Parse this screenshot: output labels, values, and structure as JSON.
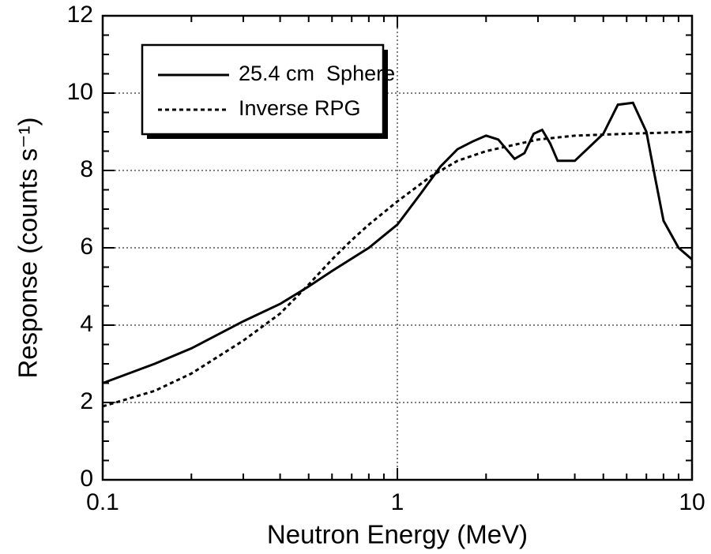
{
  "chart_data": {
    "type": "line",
    "xlabel": "Neutron Energy (MeV)",
    "ylabel": "Response (counts s⁻¹)",
    "xscale": "log",
    "xlim": [
      0.1,
      10
    ],
    "xticks": [
      0.1,
      1,
      10
    ],
    "ylim": [
      0,
      12
    ],
    "yticks": [
      0,
      2,
      4,
      6,
      8,
      10,
      12
    ],
    "grid": true,
    "legend": "upper left",
    "series": [
      {
        "name": "25.4 cm  Sphere",
        "color": "#000000",
        "linestyle": "solid",
        "x": [
          0.1,
          0.15,
          0.2,
          0.3,
          0.4,
          0.5,
          0.6,
          0.8,
          1.0,
          1.2,
          1.4,
          1.6,
          1.8,
          2.0,
          2.2,
          2.5,
          2.7,
          2.9,
          3.1,
          3.3,
          3.5,
          4.0,
          5.0,
          5.6,
          6.3,
          7.0,
          7.5,
          8.0,
          9.0,
          10
        ],
        "values": [
          2.5,
          3.0,
          3.4,
          4.1,
          4.55,
          5.0,
          5.4,
          6.0,
          6.6,
          7.4,
          8.1,
          8.55,
          8.75,
          8.9,
          8.8,
          8.3,
          8.45,
          8.95,
          9.05,
          8.7,
          8.25,
          8.25,
          8.95,
          9.7,
          9.75,
          9.0,
          7.8,
          6.7,
          6.0,
          5.7
        ]
      },
      {
        "name": "Inverse RPG",
        "color": "#000000",
        "linestyle": "dashed",
        "x": [
          0.1,
          0.15,
          0.2,
          0.3,
          0.4,
          0.5,
          0.6,
          0.7,
          0.8,
          1.0,
          1.3,
          1.6,
          2,
          3,
          4,
          6,
          10
        ],
        "values": [
          1.9,
          2.3,
          2.75,
          3.6,
          4.3,
          5.05,
          5.7,
          6.2,
          6.6,
          7.2,
          7.85,
          8.25,
          8.5,
          8.8,
          8.9,
          8.95,
          9.0
        ]
      }
    ]
  }
}
